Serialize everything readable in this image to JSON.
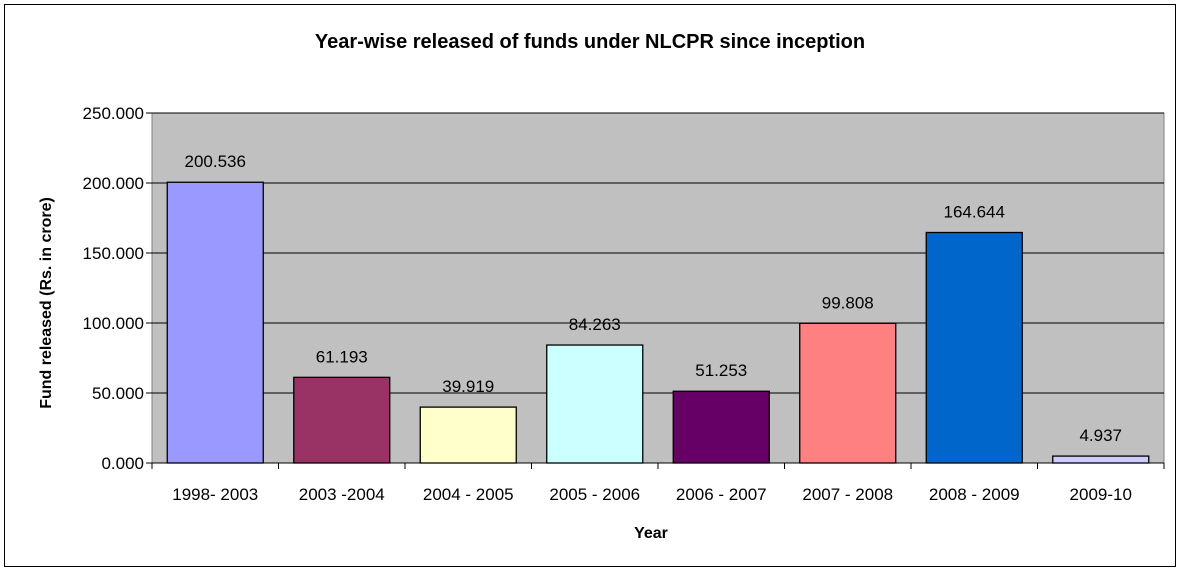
{
  "chart_data": {
    "type": "bar",
    "title": "Year-wise released of funds under NLCPR since inception",
    "xlabel": "Year",
    "ylabel": "Fund released (Rs. in crore)",
    "categories": [
      "1998- 2003",
      "2003 -2004",
      "2004 - 2005",
      "2005 - 2006",
      "2006 - 2007",
      "2007 - 2008",
      "2008 - 2009",
      "2009-10"
    ],
    "values": [
      200.536,
      61.193,
      39.919,
      84.263,
      51.253,
      99.808,
      164.644,
      4.937
    ],
    "value_labels": [
      "200.536",
      "61.193",
      "39.919",
      "84.263",
      "51.253",
      "99.808",
      "164.644",
      "4.937"
    ],
    "bar_colors": [
      "#9999FF",
      "#993366",
      "#FFFFCC",
      "#CCFFFF",
      "#660066",
      "#FF8080",
      "#0066CC",
      "#CCCCFF"
    ],
    "ylim": [
      0,
      250
    ],
    "yticks": [
      0,
      50,
      100,
      150,
      200,
      250
    ],
    "ytick_labels": [
      "0.000",
      "50.000",
      "100.000",
      "150.000",
      "200.000",
      "250.000"
    ],
    "plot_background": "#C0C0C0",
    "grid": true,
    "legend": "none"
  }
}
